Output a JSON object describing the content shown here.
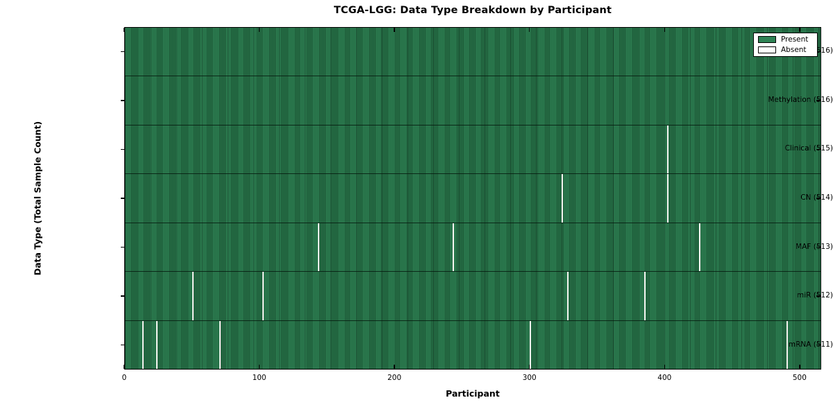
{
  "chart_data": {
    "type": "heatmap",
    "title": "TCGA-LGG: Data Type Breakdown by Participant",
    "xlabel": "Participant",
    "ylabel": "Data Type (Total Sample Count)",
    "x_ticks": [
      0,
      100,
      200,
      300,
      400,
      500
    ],
    "x_range": [
      0,
      516
    ],
    "n_participants": 516,
    "grid": false,
    "legend_position": "upper right",
    "colors": {
      "present_fill": "#2f8355",
      "present_edge": "#16482b",
      "absent_fill": "#ffffff",
      "row_divider": "#04160c",
      "plot_border": "#000000"
    },
    "legend": [
      {
        "label": "Present",
        "color": "#2f8355"
      },
      {
        "label": "Absent",
        "color": "#ffffff"
      }
    ],
    "rows": [
      {
        "label": "BCR (516)",
        "data_type": "BCR",
        "present_count": 516,
        "absent_participants": []
      },
      {
        "label": "Methylation (516)",
        "data_type": "Methylation",
        "present_count": 516,
        "absent_participants": []
      },
      {
        "label": "Clinical (515)",
        "data_type": "Clinical",
        "present_count": 515,
        "absent_participants": [
          402
        ]
      },
      {
        "label": "CN (514)",
        "data_type": "CN",
        "present_count": 514,
        "absent_participants": [
          324,
          402
        ]
      },
      {
        "label": "MAF (513)",
        "data_type": "MAF",
        "present_count": 513,
        "absent_participants": [
          143,
          243,
          426
        ]
      },
      {
        "label": "miR (512)",
        "data_type": "miR",
        "present_count": 512,
        "absent_participants": [
          50,
          102,
          328,
          385
        ]
      },
      {
        "label": "mRNA (511)",
        "data_type": "mRNA",
        "present_count": 511,
        "absent_participants": [
          13,
          23,
          70,
          300,
          491
        ]
      }
    ]
  }
}
